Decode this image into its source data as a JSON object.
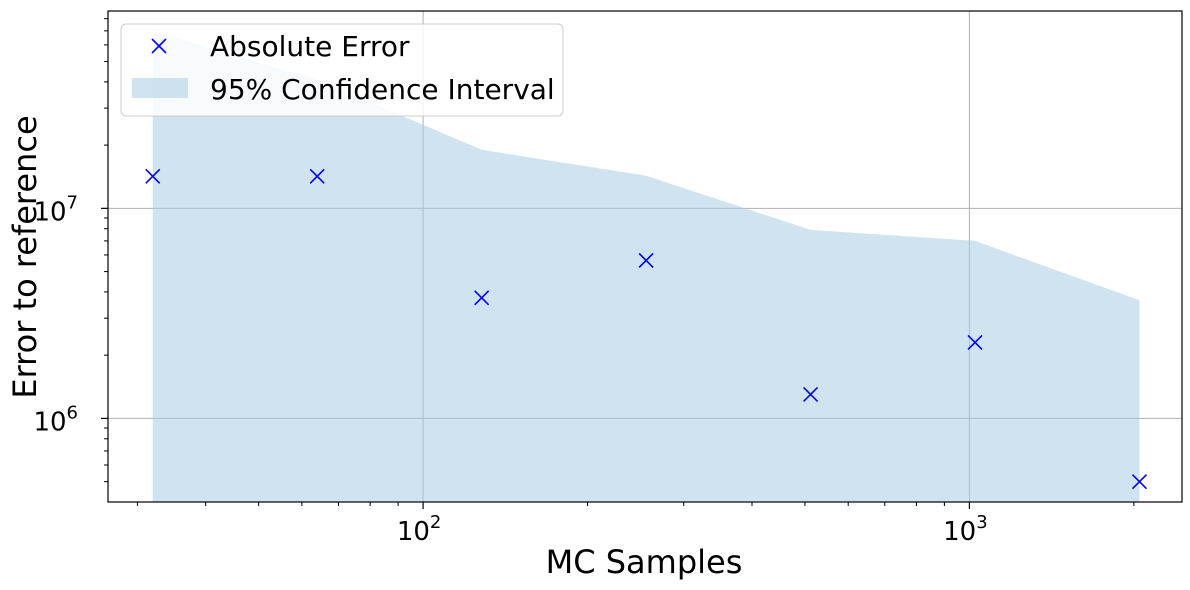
{
  "chart_data": {
    "type": "scatter",
    "xlabel": "MC Samples",
    "ylabel": "Error to reference",
    "x_scale": "log",
    "y_scale": "log",
    "xlim": [
      26.5,
      2450
    ],
    "ylim": [
      400000,
      87000000
    ],
    "grid": true,
    "legend_position": "top-left",
    "x_ticks": [
      {
        "base": "10",
        "exp": "2",
        "value": 100
      },
      {
        "base": "10",
        "exp": "3",
        "value": 1000
      }
    ],
    "y_ticks": [
      {
        "base": "10",
        "exp": "6",
        "value": 1000000
      },
      {
        "base": "10",
        "exp": "7",
        "value": 10000000
      }
    ],
    "series": [
      {
        "name": "Absolute Error",
        "kind": "marker-x",
        "color": "#0000ff",
        "x": [
          32,
          64,
          128,
          256,
          512,
          1024,
          2048
        ],
        "y": [
          14200000,
          14200000,
          3750000,
          5650000,
          1300000,
          2300000,
          500000
        ]
      },
      {
        "name": "95% Confidence Interval",
        "kind": "band",
        "color": "#a9cce3",
        "x": [
          32,
          64,
          128,
          256,
          512,
          1024,
          2048
        ],
        "upper": [
          70000000,
          41000000,
          19000000,
          14300000,
          7900000,
          7000000,
          3650000
        ],
        "lower": [
          400000,
          400000,
          400000,
          400000,
          400000,
          400000,
          400000
        ]
      }
    ]
  }
}
